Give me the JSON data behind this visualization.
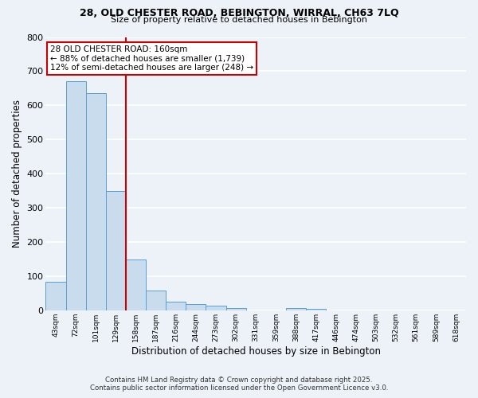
{
  "title_line1": "28, OLD CHESTER ROAD, BEBINGTON, WIRRAL, CH63 7LQ",
  "title_line2": "Size of property relative to detached houses in Bebington",
  "xlabel": "Distribution of detached houses by size in Bebington",
  "ylabel": "Number of detached properties",
  "bin_labels": [
    "43sqm",
    "72sqm",
    "101sqm",
    "129sqm",
    "158sqm",
    "187sqm",
    "216sqm",
    "244sqm",
    "273sqm",
    "302sqm",
    "331sqm",
    "359sqm",
    "388sqm",
    "417sqm",
    "446sqm",
    "474sqm",
    "503sqm",
    "532sqm",
    "561sqm",
    "589sqm",
    "618sqm"
  ],
  "bar_heights": [
    83,
    670,
    635,
    350,
    148,
    57,
    25,
    19,
    14,
    7,
    0,
    0,
    6,
    5,
    0,
    0,
    0,
    0,
    0,
    0,
    0
  ],
  "bar_color": "#c9dced",
  "bar_edge_color": "#5a9fd4",
  "red_line_x": 3.5,
  "annotation_text": "28 OLD CHESTER ROAD: 160sqm\n← 88% of detached houses are smaller (1,739)\n12% of semi-detached houses are larger (248) →",
  "annotation_box_facecolor": "#ffffff",
  "annotation_box_edgecolor": "#cc0000",
  "red_line_color": "#cc0000",
  "footnote_line1": "Contains HM Land Registry data © Crown copyright and database right 2025.",
  "footnote_line2": "Contains public sector information licensed under the Open Government Licence v3.0.",
  "ylim": [
    0,
    800
  ],
  "yticks": [
    0,
    100,
    200,
    300,
    400,
    500,
    600,
    700,
    800
  ],
  "background_color": "#edf2f9",
  "grid_color": "#ffffff",
  "figsize": [
    6.0,
    5.0
  ],
  "dpi": 100
}
